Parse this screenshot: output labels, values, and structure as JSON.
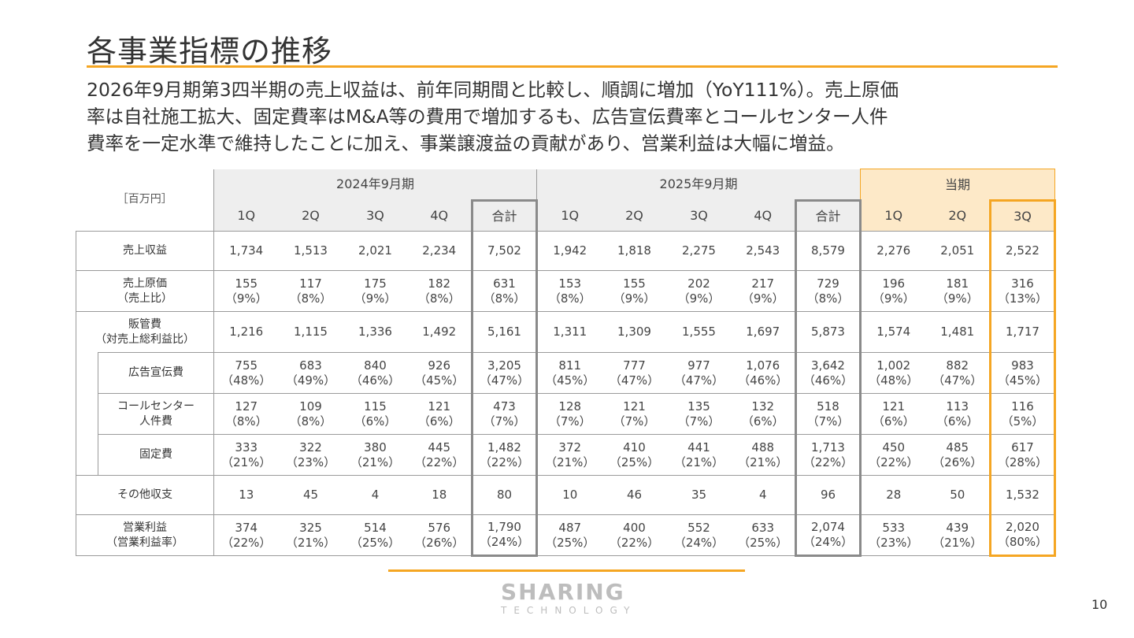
{
  "title": "各事業指標の推移",
  "summary_lines": [
    "2026年9月期第3四半期の売上収益は、前年同期間と比較し、順調に増加（YoY111%）。売上原価",
    "率は自社施工拡大、固定費率はM&A等の費用で増加するも、広告宣伝費率とコールセンター人件",
    "費率を一定水準で維持したことに加え、事業譲渡益の貢献があり、営業利益は大幅に増益。"
  ],
  "table": {
    "unit": "［百万円］",
    "periods": [
      "2024年9月期",
      "2025年9月期",
      "当期"
    ],
    "quarter_labels": [
      "1Q",
      "2Q",
      "3Q",
      "4Q",
      "合計",
      "1Q",
      "2Q",
      "3Q",
      "4Q",
      "合計",
      "1Q",
      "2Q",
      "3Q"
    ],
    "rows": [
      {
        "label1": "売上収益",
        "label2": "",
        "indent": false,
        "v": [
          "1,734",
          "1,513",
          "2,021",
          "2,234",
          "7,502",
          "1,942",
          "1,818",
          "2,275",
          "2,543",
          "8,579",
          "2,276",
          "2,051",
          "2,522"
        ],
        "p": [
          "",
          "",
          "",
          "",
          "",
          "",
          "",
          "",
          "",
          "",
          "",
          "",
          ""
        ]
      },
      {
        "label1": "売上原価",
        "label2": "（売上比）",
        "indent": false,
        "v": [
          "155",
          "117",
          "175",
          "182",
          "631",
          "153",
          "155",
          "202",
          "217",
          "729",
          "196",
          "181",
          "316"
        ],
        "p": [
          "（9%）",
          "（8%）",
          "（9%）",
          "（8%）",
          "（8%）",
          "（8%）",
          "（9%）",
          "（9%）",
          "（9%）",
          "（8%）",
          "（9%）",
          "（9%）",
          "（13%）"
        ]
      },
      {
        "label1": "販管費",
        "label2": "（対売上総利益比）",
        "indent": false,
        "v": [
          "1,216",
          "1,115",
          "1,336",
          "1,492",
          "5,161",
          "1,311",
          "1,309",
          "1,555",
          "1,697",
          "5,873",
          "1,574",
          "1,481",
          "1,717"
        ],
        "p": [
          "",
          "",
          "",
          "",
          "",
          "",
          "",
          "",
          "",
          "",
          "",
          "",
          ""
        ]
      },
      {
        "label1": "広告宣伝費",
        "label2": "",
        "indent": true,
        "v": [
          "755",
          "683",
          "840",
          "926",
          "3,205",
          "811",
          "777",
          "977",
          "1,076",
          "3,642",
          "1,002",
          "882",
          "983"
        ],
        "p": [
          "（48%）",
          "（49%）",
          "（46%）",
          "（45%）",
          "（47%）",
          "（45%）",
          "（47%）",
          "（47%）",
          "（46%）",
          "（46%）",
          "（48%）",
          "（47%）",
          "（45%）"
        ]
      },
      {
        "label1": "コールセンター",
        "label2": "人件費",
        "indent": true,
        "v": [
          "127",
          "109",
          "115",
          "121",
          "473",
          "128",
          "121",
          "135",
          "132",
          "518",
          "121",
          "113",
          "116"
        ],
        "p": [
          "（8%）",
          "（8%）",
          "（6%）",
          "（6%）",
          "（7%）",
          "（7%）",
          "（7%）",
          "（7%）",
          "（6%）",
          "（7%）",
          "（6%）",
          "（6%）",
          "（5%）"
        ]
      },
      {
        "label1": "固定費",
        "label2": "",
        "indent": true,
        "v": [
          "333",
          "322",
          "380",
          "445",
          "1,482",
          "372",
          "410",
          "441",
          "488",
          "1,713",
          "450",
          "485",
          "617"
        ],
        "p": [
          "（21%）",
          "（23%）",
          "（21%）",
          "（22%）",
          "（22%）",
          "（21%）",
          "（25%）",
          "（21%）",
          "（21%）",
          "（22%）",
          "（22%）",
          "（26%）",
          "（28%）"
        ]
      },
      {
        "label1": "その他収支",
        "label2": "",
        "indent": false,
        "v": [
          "13",
          "45",
          "4",
          "18",
          "80",
          "10",
          "46",
          "35",
          "4",
          "96",
          "28",
          "50",
          "1,532"
        ],
        "p": [
          "",
          "",
          "",
          "",
          "",
          "",
          "",
          "",
          "",
          "",
          "",
          "",
          ""
        ]
      },
      {
        "label1": "営業利益",
        "label2": "（営業利益率）",
        "indent": false,
        "v": [
          "374",
          "325",
          "514",
          "576",
          "1,790",
          "487",
          "400",
          "552",
          "633",
          "2,074",
          "533",
          "439",
          "2,020"
        ],
        "p": [
          "（22%）",
          "（21%）",
          "（25%）",
          "（26%）",
          "（24%）",
          "（25%）",
          "（22%）",
          "（24%）",
          "（25%）",
          "（24%）",
          "（23%）",
          "（21%）",
          "（80%）"
        ]
      }
    ]
  },
  "logo": {
    "main": "SHARING",
    "sub": "TECHNOLOGY"
  },
  "page_number": "10",
  "colors": {
    "accent": "#f5a623",
    "header_bg": "#eeeeee",
    "current_header_bg": "#fde9c8"
  }
}
